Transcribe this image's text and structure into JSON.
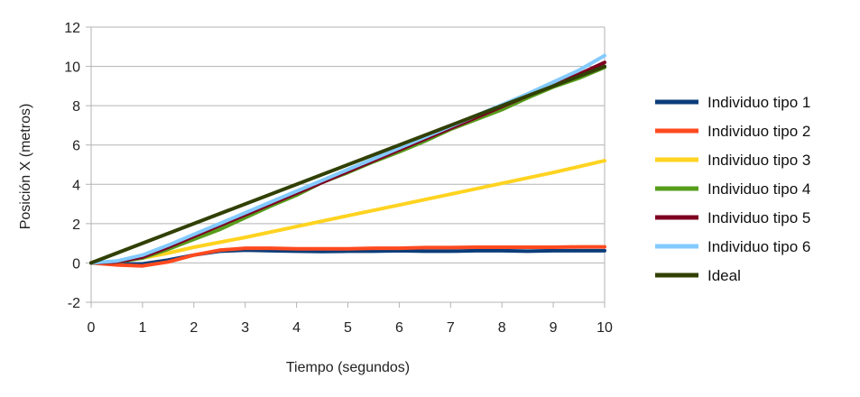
{
  "chart_data": {
    "type": "line",
    "title": "",
    "xlabel": "Tiempo (segundos)",
    "ylabel": "Posición X (metros)",
    "xlim": [
      0,
      10
    ],
    "ylim": [
      -2,
      12
    ],
    "xticks": [
      "0",
      "1",
      "2",
      "3",
      "4",
      "5",
      "6",
      "7",
      "8",
      "9",
      "10"
    ],
    "yticks": [
      "-2",
      "0",
      "2",
      "4",
      "6",
      "8",
      "10",
      "12"
    ],
    "grid": "horizontal",
    "legend_position": "right",
    "series": [
      {
        "name": "Individuo tipo 1",
        "color": "#0b3d7a",
        "x": [
          0,
          0.5,
          1,
          1.5,
          2,
          2.5,
          3,
          3.5,
          4,
          4.5,
          5,
          5.5,
          6,
          6.5,
          7,
          7.5,
          8,
          8.5,
          9,
          9.5,
          10
        ],
        "y": [
          0,
          -0.05,
          -0.05,
          0.15,
          0.4,
          0.6,
          0.65,
          0.62,
          0.6,
          0.58,
          0.6,
          0.6,
          0.62,
          0.6,
          0.6,
          0.62,
          0.62,
          0.6,
          0.62,
          0.62,
          0.62
        ]
      },
      {
        "name": "Individuo tipo 2",
        "color": "#ff4a1f",
        "x": [
          0,
          0.5,
          1,
          1.5,
          2,
          2.5,
          3,
          3.5,
          4,
          4.5,
          5,
          5.5,
          6,
          6.5,
          7,
          7.5,
          8,
          8.5,
          9,
          9.5,
          10
        ],
        "y": [
          0,
          -0.1,
          -0.15,
          0.05,
          0.4,
          0.65,
          0.75,
          0.75,
          0.72,
          0.72,
          0.72,
          0.75,
          0.75,
          0.78,
          0.78,
          0.8,
          0.8,
          0.8,
          0.8,
          0.82,
          0.82
        ]
      },
      {
        "name": "Individuo tipo 3",
        "color": "#ffd320",
        "x": [
          0,
          0.5,
          1,
          1.5,
          2,
          3,
          4,
          5,
          6,
          7,
          8,
          9,
          10
        ],
        "y": [
          0,
          0.05,
          0.25,
          0.5,
          0.8,
          1.3,
          1.85,
          2.4,
          2.95,
          3.5,
          4.05,
          4.6,
          5.2
        ]
      },
      {
        "name": "Individuo tipo 4",
        "color": "#579d1c",
        "x": [
          0,
          0.5,
          1,
          1.5,
          2,
          2.5,
          3,
          3.5,
          4,
          4.5,
          5,
          5.5,
          6,
          6.5,
          7,
          7.5,
          8,
          8.5,
          9,
          9.5,
          10
        ],
        "y": [
          0,
          0.05,
          0.25,
          0.7,
          1.2,
          1.7,
          2.3,
          2.9,
          3.45,
          4.1,
          4.6,
          5.15,
          5.65,
          6.2,
          6.8,
          7.3,
          7.8,
          8.4,
          8.95,
          9.4,
          9.95
        ]
      },
      {
        "name": "Individuo tipo 5",
        "color": "#7e0021",
        "x": [
          0,
          0.5,
          1,
          1.5,
          2,
          2.5,
          3,
          3.5,
          4,
          4.5,
          5,
          5.5,
          6,
          6.5,
          7,
          7.5,
          8,
          8.5,
          9,
          9.5,
          10
        ],
        "y": [
          0,
          0.05,
          0.3,
          0.8,
          1.35,
          1.9,
          2.45,
          3.0,
          3.55,
          4.1,
          4.65,
          5.2,
          5.75,
          6.3,
          6.85,
          7.4,
          7.95,
          8.5,
          9.05,
          9.6,
          10.2
        ]
      },
      {
        "name": "Individuo tipo 6",
        "color": "#83caff",
        "x": [
          0,
          0.5,
          1,
          1.5,
          2,
          2.5,
          3,
          3.5,
          4,
          4.5,
          5,
          5.5,
          6,
          6.5,
          7,
          7.5,
          8,
          8.5,
          9,
          9.5,
          10
        ],
        "y": [
          0,
          0.1,
          0.4,
          0.9,
          1.45,
          2.0,
          2.55,
          3.1,
          3.65,
          4.2,
          4.75,
          5.3,
          5.85,
          6.4,
          6.95,
          7.5,
          8.05,
          8.6,
          9.2,
          9.8,
          10.55
        ]
      },
      {
        "name": "Ideal",
        "color": "#314004",
        "x": [
          0,
          10
        ],
        "y": [
          0,
          10
        ]
      }
    ]
  }
}
